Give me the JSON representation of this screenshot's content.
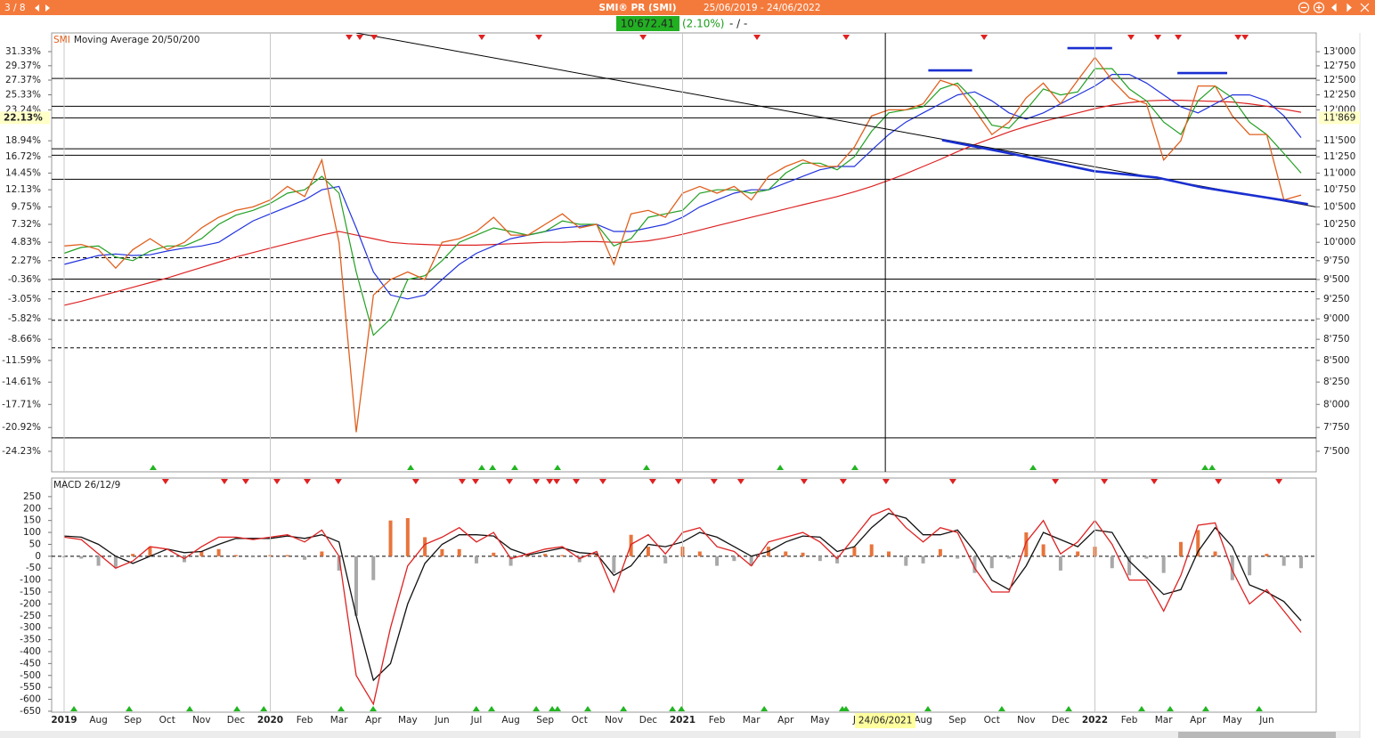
{
  "header": {
    "page": "3 / 8",
    "title": "SMI® PR (SMI)",
    "range": "25/06/2019 - 24/06/2022",
    "last": "10'672.41",
    "change": "(2.10%)",
    "extra": "- / -"
  },
  "chart_data": [
    {
      "type": "line",
      "title": "SMI",
      "subtitle": "Moving Average 20/50/200",
      "log_scale": true,
      "categories": [
        "2019",
        null,
        "Aug",
        null,
        "Sep",
        null,
        "Oct",
        null,
        "Nov",
        null,
        "Dec",
        null,
        "2020",
        null,
        "Feb",
        null,
        "Mar",
        null,
        "Apr",
        null,
        "May",
        null,
        "Jun",
        null,
        "Jul",
        null,
        "Aug",
        null,
        "Sep",
        null,
        "Oct",
        null,
        "Nov",
        null,
        "Dec",
        null,
        "2021",
        null,
        "Feb",
        null,
        "Mar",
        null,
        "Apr",
        null,
        "May",
        null,
        "J",
        null,
        null,
        null,
        "Aug",
        null,
        "Sep",
        null,
        "Oct",
        null,
        "Nov",
        null,
        "Dec",
        null,
        "2022",
        null,
        "Feb",
        null,
        "Mar",
        null,
        "Apr",
        null,
        "May",
        null,
        "Jun",
        null,
        null
      ],
      "series": [
        {
          "name": "SMI",
          "color": "#e0601e",
          "values": [
            9950,
            9970,
            9900,
            9650,
            9900,
            10050,
            9900,
            10000,
            10200,
            10350,
            10450,
            10500,
            10600,
            10800,
            10650,
            11200,
            10000,
            7700,
            9300,
            9500,
            9600,
            9500,
            10000,
            10050,
            10150,
            10350,
            10100,
            10100,
            10250,
            10400,
            10200,
            10250,
            9700,
            10400,
            10450,
            10350,
            10700,
            10800,
            10700,
            10800,
            10600,
            10950,
            11100,
            11200,
            11100,
            11100,
            11400,
            11900,
            12000,
            12000,
            12100,
            12500,
            12400,
            12000,
            11600,
            11800,
            12200,
            12450,
            12100,
            12500,
            12900,
            12500,
            12200,
            12100,
            11200,
            11500,
            12400,
            12400,
            11900,
            11600,
            11600,
            10600,
            10672
          ]
        },
        {
          "color": "#22a022",
          "values": [
            9850,
            9930,
            9950,
            9800,
            9750,
            9880,
            9950,
            9950,
            10050,
            10250,
            10380,
            10450,
            10550,
            10700,
            10750,
            10950,
            10700,
            9600,
            8800,
            9000,
            9500,
            9550,
            9750,
            10000,
            10100,
            10200,
            10150,
            10100,
            10150,
            10300,
            10250,
            10250,
            9950,
            10050,
            10350,
            10400,
            10450,
            10700,
            10750,
            10750,
            10700,
            10750,
            11000,
            11150,
            11150,
            11050,
            11250,
            11650,
            11950,
            12000,
            12050,
            12350,
            12450,
            12150,
            11750,
            11700,
            12000,
            12350,
            12250,
            12300,
            12700,
            12700,
            12350,
            12150,
            11800,
            11600,
            12150,
            12400,
            12200,
            11800,
            11600,
            11300,
            11000
          ]
        },
        {
          "color": "#2233dd",
          "values": [
            9700,
            9760,
            9820,
            9840,
            9820,
            9830,
            9880,
            9920,
            9950,
            10000,
            10150,
            10300,
            10400,
            10500,
            10600,
            10750,
            10800,
            10200,
            9600,
            9300,
            9250,
            9300,
            9500,
            9700,
            9850,
            9950,
            10050,
            10100,
            10150,
            10200,
            10220,
            10250,
            10150,
            10150,
            10200,
            10250,
            10350,
            10500,
            10600,
            10700,
            10750,
            10750,
            10850,
            10950,
            11050,
            11100,
            11100,
            11350,
            11600,
            11800,
            11950,
            12100,
            12250,
            12300,
            12150,
            11950,
            11850,
            11950,
            12100,
            12250,
            12400,
            12600,
            12600,
            12450,
            12250,
            12050,
            11950,
            12100,
            12250,
            12250,
            12150,
            11900,
            11550
          ]
        },
        {
          "color": "#dd2222",
          "values": [
            9170,
            9220,
            9280,
            9340,
            9400,
            9460,
            9520,
            9590,
            9660,
            9730,
            9800,
            9860,
            9920,
            9980,
            10040,
            10100,
            10150,
            10100,
            10050,
            10000,
            9980,
            9970,
            9960,
            9960,
            9960,
            9970,
            9980,
            9990,
            10000,
            10000,
            10010,
            10010,
            10000,
            10000,
            10020,
            10060,
            10110,
            10170,
            10230,
            10290,
            10350,
            10410,
            10470,
            10530,
            10590,
            10650,
            10720,
            10800,
            10890,
            10990,
            11100,
            11210,
            11330,
            11440,
            11540,
            11640,
            11730,
            11810,
            11880,
            11950,
            12020,
            12080,
            12120,
            12150,
            12160,
            12160,
            12150,
            12140,
            12130,
            12100,
            12060,
            12010,
            11960
          ]
        }
      ],
      "ylim": [
        7291,
        13340
      ],
      "yticks": [
        {
          "value": 13000,
          "label": "13'000"
        },
        {
          "value": 12750,
          "label": "12'750"
        },
        {
          "value": 12500,
          "label": "12'500"
        },
        {
          "value": 12250,
          "label": "12'250"
        },
        {
          "value": 12000,
          "label": "12'000"
        },
        {
          "value": 11500,
          "label": "11'500"
        },
        {
          "value": 11250,
          "label": "11'250"
        },
        {
          "value": 11000,
          "label": "11'000"
        },
        {
          "value": 10750,
          "label": "10'750"
        },
        {
          "value": 10500,
          "label": "10'500"
        },
        {
          "value": 10250,
          "label": "10'250"
        },
        {
          "value": 10000,
          "label": "10'000"
        },
        {
          "value": 9750,
          "label": "9'750"
        },
        {
          "value": 9500,
          "label": "9'500"
        },
        {
          "value": 9250,
          "label": "9'250"
        },
        {
          "value": 9000,
          "label": "9'000"
        },
        {
          "value": 8750,
          "label": "8'750"
        },
        {
          "value": 8500,
          "label": "8'500"
        },
        {
          "value": 8250,
          "label": "8'250"
        },
        {
          "value": 8000,
          "label": "8'000"
        },
        {
          "value": 7750,
          "label": "7'750"
        },
        {
          "value": 7500,
          "label": "7'500"
        }
      ],
      "y2lim": [
        -27.08,
        33.93
      ],
      "y2ticks": [
        {
          "value": 31.33,
          "label": "31.33%"
        },
        {
          "value": 29.37,
          "label": "29.37%"
        },
        {
          "value": 27.37,
          "label": "27.37%"
        },
        {
          "value": 25.33,
          "label": "25.33%"
        },
        {
          "value": 23.24,
          "label": "23.24%"
        },
        {
          "value": 18.94,
          "label": "18.94%"
        },
        {
          "value": 16.72,
          "label": "16.72%"
        },
        {
          "value": 14.45,
          "label": "14.45%"
        },
        {
          "value": 12.13,
          "label": "12.13%"
        },
        {
          "value": 9.75,
          "label": "9.75%"
        },
        {
          "value": 7.32,
          "label": "7.32%"
        },
        {
          "value": 4.83,
          "label": "4.83%"
        },
        {
          "value": 2.27,
          "label": "2.27%"
        },
        {
          "value": -0.36,
          "label": "-0.36%"
        },
        {
          "value": -3.05,
          "label": "-3.05%"
        },
        {
          "value": -5.82,
          "label": "-5.82%"
        },
        {
          "value": -8.66,
          "label": "-8.66%"
        },
        {
          "value": -11.59,
          "label": "-11.59%"
        },
        {
          "value": -14.61,
          "label": "-14.61%"
        },
        {
          "value": -17.71,
          "label": "-17.71%"
        },
        {
          "value": -20.92,
          "label": "-20.92%"
        },
        {
          "value": -24.23,
          "label": "-24.23%"
        }
      ],
      "levels": [
        {
          "value": 12530,
          "style": "solid"
        },
        {
          "value": 12060,
          "style": "solid"
        },
        {
          "value": 11373,
          "style": "solid"
        },
        {
          "value": 11274,
          "style": "solid"
        },
        {
          "value": 10907,
          "style": "solid"
        },
        {
          "value": 9506,
          "style": "solid"
        },
        {
          "value": 7640,
          "style": "solid"
        },
        {
          "value": 9790,
          "style": "dashed"
        },
        {
          "value": 9343,
          "style": "dashed"
        },
        {
          "value": 8983,
          "style": "dashed"
        },
        {
          "value": 8648,
          "style": "dashed"
        }
      ],
      "trendlines": [
        {
          "color": "#000000",
          "style": "thin",
          "points": [
            [
              17.0,
              13340
            ],
            [
              72.85,
              10500
            ]
          ]
        },
        {
          "color": "#1a2fd0",
          "style": "bold",
          "points": [
            [
              51.1,
              11512
            ],
            [
              54.8,
              11316
            ],
            [
              59.96,
              11028
            ],
            [
              63.6,
              10933
            ],
            [
              66.2,
              10787
            ],
            [
              72.4,
              10539
            ]
          ]
        },
        {
          "color": "#1a2fd0",
          "style": "bold",
          "points": [
            [
              50.3,
              12670
            ],
            [
              52.85,
              12670
            ]
          ]
        },
        {
          "color": "#1a2fd0",
          "style": "bold",
          "points": [
            [
              58.4,
              13064
            ],
            [
              61.0,
              13064
            ]
          ]
        },
        {
          "color": "#1a2fd0",
          "style": "bold",
          "points": [
            [
              64.8,
              12622
            ],
            [
              67.7,
              12622
            ]
          ]
        }
      ],
      "crosshair": {
        "x": 47.8,
        "value": 11869,
        "x_label": "24/06/2021",
        "y_label": "11'869",
        "y2_label": "22.13%"
      },
      "sell_signals": [
        16.59,
        17.21,
        18.04,
        24.31,
        27.63,
        33.7,
        40.33,
        45.52,
        53.55,
        62.1,
        63.66,
        64.85,
        68.33,
        68.74
      ],
      "buy_signals": [
        5.18,
        20.17,
        24.31,
        24.94,
        26.23,
        28.72,
        33.9,
        41.68,
        46.03,
        56.4,
        66.41,
        66.82
      ]
    },
    {
      "type": "line",
      "title": "MACD 26/12/9",
      "zero_line": true,
      "series": [
        {
          "style": "bar",
          "color": "#e8743b",
          "negative_color": "#a8a8a8",
          "values": [
            -5,
            -10,
            -40,
            -50,
            10,
            40,
            0,
            -25,
            20,
            30,
            5,
            -5,
            5,
            5,
            -15,
            20,
            -60,
            -250,
            -100,
            150,
            160,
            80,
            30,
            30,
            -30,
            15,
            -40,
            5,
            10,
            5,
            -25,
            10,
            -70,
            90,
            40,
            -30,
            40,
            20,
            -40,
            -20,
            -40,
            40,
            20,
            15,
            -20,
            -30,
            40,
            50,
            20,
            -40,
            -30,
            30,
            -10,
            -70,
            -50,
            -10,
            100,
            50,
            -60,
            20,
            40,
            -50,
            -80,
            -10,
            -70,
            60,
            110,
            20,
            -100,
            -80,
            10,
            -40,
            -50
          ]
        },
        {
          "color": "#111111",
          "values": [
            85,
            80,
            50,
            0,
            -30,
            0,
            30,
            15,
            20,
            50,
            75,
            75,
            75,
            85,
            75,
            90,
            60,
            -250,
            -520,
            -450,
            -200,
            -30,
            50,
            90,
            90,
            85,
            30,
            5,
            20,
            35,
            15,
            10,
            -80,
            -40,
            50,
            40,
            60,
            100,
            80,
            40,
            0,
            20,
            60,
            85,
            80,
            20,
            40,
            120,
            180,
            160,
            90,
            90,
            110,
            20,
            -100,
            -140,
            -40,
            100,
            70,
            40,
            110,
            100,
            -20,
            -90,
            -160,
            -140,
            20,
            120,
            40,
            -120,
            -150,
            -190,
            -270
          ]
        },
        {
          "color": "#dd2222",
          "values": [
            80,
            70,
            10,
            -50,
            -20,
            40,
            30,
            -10,
            40,
            80,
            80,
            70,
            80,
            90,
            60,
            110,
            0,
            -500,
            -620,
            -300,
            -40,
            50,
            80,
            120,
            60,
            100,
            -10,
            10,
            30,
            40,
            -10,
            20,
            -150,
            50,
            90,
            10,
            100,
            120,
            40,
            20,
            -40,
            60,
            80,
            100,
            60,
            -10,
            80,
            170,
            200,
            120,
            60,
            120,
            100,
            -50,
            -150,
            -150,
            60,
            150,
            10,
            60,
            150,
            50,
            -100,
            -100,
            -230,
            -80,
            130,
            140,
            -60,
            -200,
            -140,
            -230,
            -320
          ]
        }
      ],
      "ylim": [
        -654,
        328
      ],
      "yticks": [
        250,
        200,
        150,
        100,
        50,
        0,
        -50,
        -100,
        -150,
        -200,
        -250,
        -300,
        -350,
        -400,
        -450,
        -500,
        -550,
        -600,
        -650
      ],
      "sell_signals": [
        5.9,
        9.33,
        10.57,
        12.39,
        14.15,
        15.96,
        20.47,
        23.17,
        23.95,
        25.92,
        27.48,
        28.26,
        28.67,
        29.81,
        31.36,
        34.26,
        35.76,
        37.83,
        39.39,
        43.07,
        45.35,
        47.84,
        51.73,
        57.7,
        60.55,
        63.45,
        67.19,
        70.71
      ],
      "buy_signals": [
        0.57,
        3.79,
        7.31,
        10.06,
        11.62,
        16.12,
        17.99,
        23.99,
        24.88,
        27.48,
        28.41,
        28.72,
        30.48,
        32.56,
        35.41,
        35.93,
        40.75,
        45.3,
        45.51,
        50.28,
        54.58,
        58.47,
        62.72,
        64.38,
        66.45,
        69.56
      ]
    }
  ]
}
